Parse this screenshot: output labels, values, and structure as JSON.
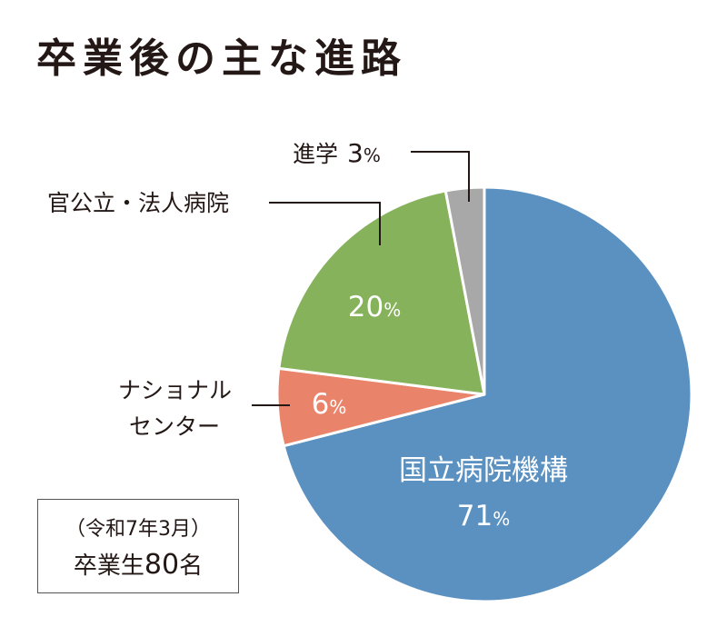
{
  "title": "卒業後の主な進路",
  "note": {
    "period": "（令和7年3月）",
    "graduates_prefix": "卒業生",
    "graduates_count": "80",
    "graduates_suffix": "名"
  },
  "chart_data": {
    "type": "pie",
    "title": "卒業後の主な進路",
    "start_angle_deg": 0,
    "direction": "clockwise",
    "slices": [
      {
        "label": "国立病院機構",
        "value": 71,
        "color": "#5b91c1",
        "label_position": "inside"
      },
      {
        "label": "ナショナルセンター",
        "label_lines": [
          "ナショナル",
          "センター"
        ],
        "value": 6,
        "color": "#e9836a",
        "label_position": "outside-left"
      },
      {
        "label": "官公立・法人病院",
        "value": 20,
        "color": "#86b25b",
        "label_position": "outside-top-left"
      },
      {
        "label": "進学",
        "value": 3,
        "color": "#a8a8a8",
        "label_position": "outside-top"
      }
    ],
    "value_suffix": "%"
  }
}
